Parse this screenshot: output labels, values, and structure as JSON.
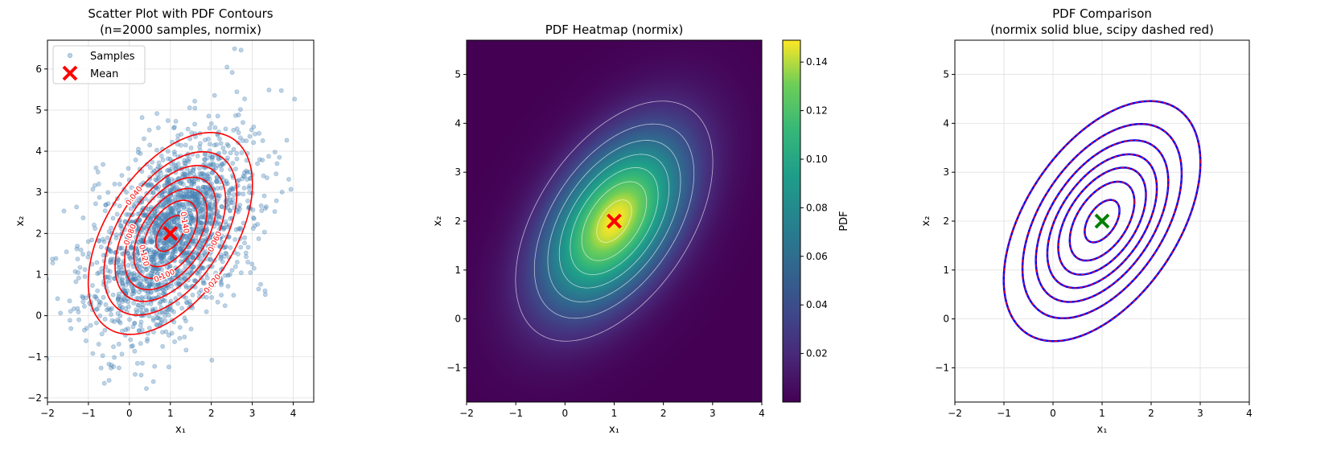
{
  "chart_data": [
    {
      "type": "scatter",
      "title": [
        "Scatter Plot with PDF Contours",
        "(n=2000 samples, normix)"
      ],
      "xlabel": "x₁",
      "ylabel": "x₂",
      "xlim": [
        -2,
        4.5
      ],
      "ylim": [
        -2.1,
        6.7
      ],
      "xticks": [
        -2,
        -1,
        0,
        1,
        2,
        3,
        4
      ],
      "yticks": [
        -2,
        -1,
        0,
        1,
        2,
        3,
        4,
        5,
        6
      ],
      "grid": true,
      "legend": {
        "placement": "upper-left",
        "entries": [
          "Samples",
          "Mean"
        ]
      },
      "series": [
        {
          "name": "Samples",
          "n": 2000,
          "color": "#4682b4",
          "marker": "circle"
        },
        {
          "name": "Mean",
          "x": 1,
          "y": 2,
          "color": "#ff0000",
          "marker": "x"
        }
      ],
      "distribution": {
        "mean": [
          1,
          2
        ],
        "covariance": [
          [
            1,
            0.6
          ],
          [
            0.6,
            1.5
          ]
        ]
      },
      "contours": {
        "color": "#ff0000",
        "levels": [
          0.02,
          0.04,
          0.06,
          0.08,
          0.1,
          0.12,
          0.14
        ],
        "labels": [
          "0.020",
          "0.040",
          "0.060",
          "0.080",
          "0.100",
          "0.120",
          "0.140"
        ]
      }
    },
    {
      "type": "heatmap",
      "title": [
        "PDF Heatmap (normix)"
      ],
      "xlabel": "x₁",
      "ylabel": "x₂",
      "xlim": [
        -2,
        4
      ],
      "ylim": [
        -1.7,
        5.7
      ],
      "xticks": [
        -2,
        -1,
        0,
        1,
        2,
        3,
        4
      ],
      "yticks": [
        -1,
        0,
        1,
        2,
        3,
        4,
        5
      ],
      "grid": false,
      "colormap": "viridis",
      "colorbar": {
        "label": "PDF",
        "range": [
          0,
          0.149
        ],
        "ticks": [
          "0.02",
          "0.04",
          "0.06",
          "0.08",
          "0.10",
          "0.12",
          "0.14"
        ]
      },
      "contours": {
        "color": "#ffffff",
        "levels": [
          0.02,
          0.04,
          0.06,
          0.08,
          0.1,
          0.12,
          0.14
        ]
      },
      "mean_marker": {
        "x": 1,
        "y": 2,
        "color": "#ff0000",
        "marker": "x"
      }
    },
    {
      "type": "line",
      "title": [
        "PDF Comparison",
        "(normix solid blue, scipy dashed red)"
      ],
      "xlabel": "x₁",
      "ylabel": "x₂",
      "xlim": [
        -2,
        4
      ],
      "ylim": [
        -1.7,
        5.7
      ],
      "xticks": [
        -2,
        -1,
        0,
        1,
        2,
        3,
        4
      ],
      "yticks": [
        -1,
        0,
        1,
        2,
        3,
        4,
        5
      ],
      "grid": true,
      "contours": {
        "levels": [
          0.02,
          0.04,
          0.06,
          0.08,
          0.1,
          0.12,
          0.14
        ],
        "normix_color": "#0000ff",
        "scipy_color": "#ff0000"
      },
      "mean_marker": {
        "x": 1,
        "y": 2,
        "color": "#008000",
        "marker": "x"
      }
    }
  ]
}
